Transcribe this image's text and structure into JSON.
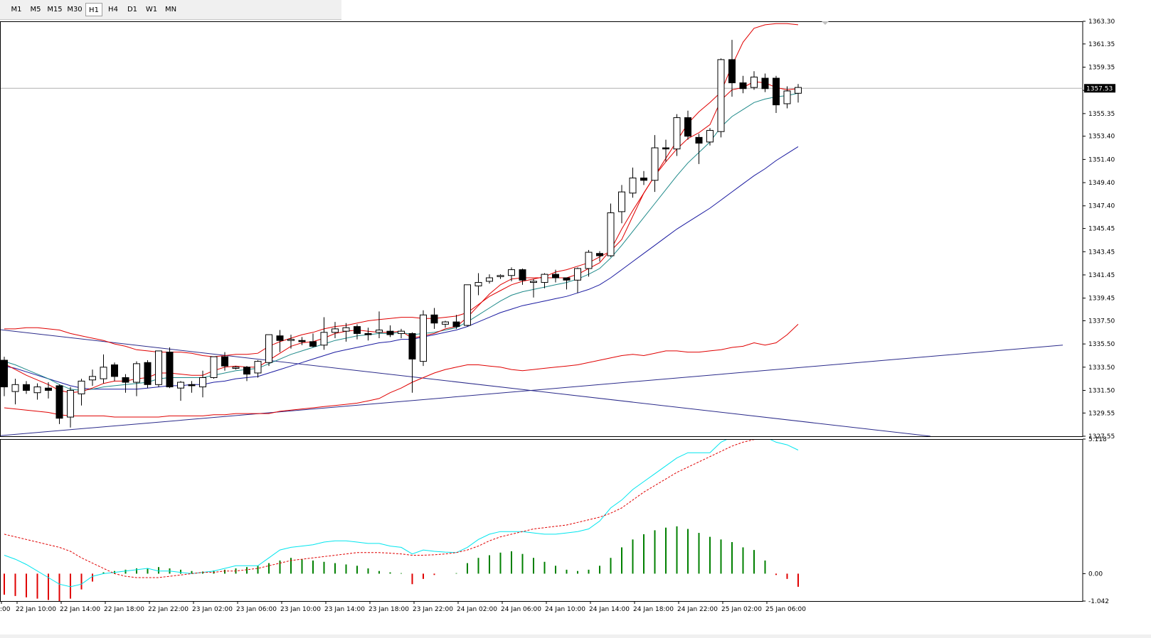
{
  "toolbar": {
    "timeframes": [
      "M1",
      "M5",
      "M15",
      "M30",
      "H1",
      "H4",
      "D1",
      "W1",
      "MN"
    ],
    "active": "H1"
  },
  "chart_data": {
    "type": "candlestick",
    "symbol_timeframe": "H1",
    "main_ylim": [
      1327.55,
      1363.3
    ],
    "price_ticks": [
      1363.3,
      1361.35,
      1359.35,
      1357.35,
      1355.35,
      1353.4,
      1351.4,
      1349.4,
      1347.4,
      1345.45,
      1343.45,
      1341.45,
      1339.45,
      1337.5,
      1335.5,
      1333.5,
      1331.5,
      1329.55,
      1327.55
    ],
    "current_price": "1357.53",
    "time_labels": [
      ":00",
      "22 Jan 10:00",
      "22 Jan 14:00",
      "22 Jan 18:00",
      "22 Jan 22:00",
      "23 Jan 02:00",
      "23 Jan 06:00",
      "23 Jan 10:00",
      "23 Jan 14:00",
      "23 Jan 18:00",
      "23 Jan 22:00",
      "24 Jan 02:00",
      "24 Jan 06:00",
      "24 Jan 10:00",
      "24 Jan 14:00",
      "24 Jan 18:00",
      "24 Jan 22:00",
      "25 Jan 02:00",
      "25 Jan 06:00"
    ],
    "candles_ohlc": [
      [
        1334.1,
        1334.4,
        1331.0,
        1331.8
      ],
      [
        1331.4,
        1332.5,
        1330.3,
        1332.0
      ],
      [
        1332.0,
        1332.3,
        1331.2,
        1331.5
      ],
      [
        1331.3,
        1332.1,
        1330.7,
        1331.8
      ],
      [
        1331.7,
        1332.2,
        1330.8,
        1331.5
      ],
      [
        1331.9,
        1332.0,
        1328.6,
        1329.1
      ],
      [
        1329.2,
        1331.8,
        1328.3,
        1331.5
      ],
      [
        1331.2,
        1332.5,
        1330.2,
        1332.3
      ],
      [
        1332.4,
        1333.3,
        1331.9,
        1332.7
      ],
      [
        1332.5,
        1334.6,
        1332.1,
        1333.5
      ],
      [
        1333.7,
        1333.9,
        1332.3,
        1332.7
      ],
      [
        1332.6,
        1332.9,
        1331.3,
        1332.2
      ],
      [
        1332.2,
        1334.0,
        1331.0,
        1333.8
      ],
      [
        1333.9,
        1334.1,
        1331.7,
        1332.0
      ],
      [
        1332.0,
        1334.8,
        1331.8,
        1334.9
      ],
      [
        1334.8,
        1335.2,
        1331.7,
        1331.8
      ],
      [
        1331.7,
        1332.3,
        1330.6,
        1332.2
      ],
      [
        1332.0,
        1332.3,
        1331.3,
        1331.9
      ],
      [
        1331.8,
        1333.2,
        1330.9,
        1332.6
      ],
      [
        1332.6,
        1334.4,
        1332.5,
        1334.4
      ],
      [
        1334.4,
        1334.8,
        1333.2,
        1333.6
      ],
      [
        1333.4,
        1333.6,
        1333.3,
        1333.5
      ],
      [
        1333.5,
        1333.6,
        1332.3,
        1332.9
      ],
      [
        1333.0,
        1334.1,
        1332.6,
        1334.0
      ],
      [
        1333.9,
        1336.2,
        1333.6,
        1336.3
      ],
      [
        1336.2,
        1336.7,
        1334.8,
        1335.8
      ],
      [
        1335.8,
        1336.3,
        1335.1,
        1335.9
      ],
      [
        1335.8,
        1336.1,
        1335.4,
        1335.7
      ],
      [
        1335.7,
        1336.4,
        1335.2,
        1335.3
      ],
      [
        1335.4,
        1337.8,
        1335.0,
        1336.5
      ],
      [
        1336.5,
        1337.4,
        1336.0,
        1336.8
      ],
      [
        1336.6,
        1337.3,
        1335.7,
        1336.9
      ],
      [
        1337.0,
        1337.2,
        1335.9,
        1336.4
      ],
      [
        1336.4,
        1336.9,
        1335.8,
        1336.3
      ],
      [
        1336.5,
        1338.3,
        1336.0,
        1336.7
      ],
      [
        1336.6,
        1337.1,
        1336.1,
        1336.3
      ],
      [
        1336.4,
        1336.8,
        1336.0,
        1336.6
      ],
      [
        1336.4,
        1336.5,
        1331.3,
        1334.2
      ],
      [
        1334.0,
        1338.4,
        1333.6,
        1338.0
      ],
      [
        1338.0,
        1338.6,
        1336.8,
        1337.3
      ],
      [
        1337.2,
        1337.5,
        1336.9,
        1337.4
      ],
      [
        1337.4,
        1338.0,
        1336.8,
        1337.0
      ],
      [
        1337.1,
        1340.6,
        1337.0,
        1340.6
      ],
      [
        1340.5,
        1341.6,
        1339.7,
        1340.8
      ],
      [
        1340.9,
        1341.5,
        1340.7,
        1341.2
      ],
      [
        1341.3,
        1341.5,
        1341.1,
        1341.4
      ],
      [
        1341.4,
        1342.1,
        1340.9,
        1341.9
      ],
      [
        1341.9,
        1342.0,
        1340.6,
        1341.0
      ],
      [
        1340.8,
        1341.1,
        1339.5,
        1340.9
      ],
      [
        1340.8,
        1341.6,
        1340.3,
        1341.5
      ],
      [
        1341.5,
        1341.9,
        1340.8,
        1341.2
      ],
      [
        1341.2,
        1341.2,
        1340.2,
        1341.0
      ],
      [
        1341.0,
        1342.1,
        1339.9,
        1342.0
      ],
      [
        1342.0,
        1343.6,
        1341.3,
        1343.4
      ],
      [
        1343.3,
        1343.5,
        1342.6,
        1343.1
      ],
      [
        1343.1,
        1347.6,
        1343.0,
        1346.8
      ],
      [
        1346.9,
        1349.2,
        1345.9,
        1348.6
      ],
      [
        1348.5,
        1350.7,
        1348.1,
        1349.8
      ],
      [
        1349.8,
        1350.4,
        1349.2,
        1349.6
      ],
      [
        1349.6,
        1353.5,
        1348.6,
        1352.4
      ],
      [
        1352.4,
        1353.1,
        1351.2,
        1352.3
      ],
      [
        1352.3,
        1355.3,
        1351.7,
        1355.0
      ],
      [
        1355.0,
        1355.6,
        1353.1,
        1353.4
      ],
      [
        1353.3,
        1353.6,
        1351.0,
        1352.8
      ],
      [
        1352.9,
        1354.1,
        1352.6,
        1353.9
      ],
      [
        1353.8,
        1360.1,
        1353.3,
        1360.0
      ],
      [
        1360.0,
        1361.7,
        1356.8,
        1358.0
      ],
      [
        1358.0,
        1358.6,
        1357.1,
        1357.5
      ],
      [
        1357.6,
        1359.0,
        1357.4,
        1358.5
      ],
      [
        1358.4,
        1358.8,
        1357.2,
        1357.5
      ],
      [
        1358.4,
        1358.6,
        1355.4,
        1356.1
      ],
      [
        1356.2,
        1357.7,
        1355.8,
        1357.3
      ],
      [
        1357.1,
        1357.9,
        1356.3,
        1357.6
      ]
    ],
    "bollinger_upper": [
      1336.8,
      1336.8,
      1336.9,
      1336.9,
      1336.8,
      1336.7,
      1336.4,
      1336.2,
      1336.0,
      1335.8,
      1335.5,
      1335.3,
      1335.0,
      1334.9,
      1334.8,
      1334.8,
      1334.8,
      1334.7,
      1334.5,
      1334.4,
      1334.5,
      1334.6,
      1334.6,
      1334.7,
      1335.3,
      1335.7,
      1336.0,
      1336.3,
      1336.5,
      1336.8,
      1337.0,
      1337.1,
      1337.3,
      1337.5,
      1337.6,
      1337.7,
      1337.8,
      1337.8,
      1337.7,
      1337.7,
      1337.8,
      1337.9,
      1338.2,
      1338.9,
      1339.6,
      1340.1,
      1340.6,
      1340.9,
      1341.1,
      1341.3,
      1341.7,
      1341.9,
      1342.2,
      1342.5,
      1343.0,
      1343.5,
      1344.5,
      1346.5,
      1348.5,
      1350.0,
      1351.5,
      1353.0,
      1354.5,
      1355.5,
      1356.3,
      1357.2,
      1359.5,
      1361.5,
      1362.7,
      1363.0,
      1363.1,
      1363.1,
      1363.0
    ],
    "bollinger_lower": [
      1330.0,
      1329.9,
      1329.8,
      1329.7,
      1329.6,
      1329.4,
      1329.3,
      1329.3,
      1329.3,
      1329.3,
      1329.2,
      1329.2,
      1329.2,
      1329.2,
      1329.2,
      1329.3,
      1329.3,
      1329.3,
      1329.3,
      1329.4,
      1329.4,
      1329.5,
      1329.5,
      1329.5,
      1329.5,
      1329.7,
      1329.8,
      1329.9,
      1330.0,
      1330.1,
      1330.2,
      1330.3,
      1330.4,
      1330.6,
      1330.8,
      1331.3,
      1331.7,
      1332.2,
      1332.6,
      1333.0,
      1333.3,
      1333.5,
      1333.7,
      1333.7,
      1333.6,
      1333.5,
      1333.3,
      1333.2,
      1333.3,
      1333.4,
      1333.5,
      1333.6,
      1333.7,
      1333.9,
      1334.1,
      1334.3,
      1334.5,
      1334.6,
      1334.5,
      1334.7,
      1334.9,
      1334.9,
      1334.8,
      1334.8,
      1334.9,
      1335.0,
      1335.2,
      1335.3,
      1335.6,
      1335.4,
      1335.6,
      1336.3,
      1337.2
    ],
    "ma_fast_red": [
      1333.8,
      1333.3,
      1332.8,
      1332.4,
      1332.0,
      1331.5,
      1331.3,
      1331.4,
      1331.7,
      1332.1,
      1332.3,
      1332.3,
      1332.5,
      1332.6,
      1333.0,
      1333.0,
      1332.9,
      1332.8,
      1332.8,
      1333.2,
      1333.5,
      1333.6,
      1333.5,
      1333.5,
      1334.1,
      1334.7,
      1335.3,
      1335.6,
      1335.7,
      1336.0,
      1336.4,
      1336.6,
      1336.7,
      1336.6,
      1336.5,
      1336.5,
      1336.6,
      1336.0,
      1336.2,
      1336.4,
      1336.8,
      1337.0,
      1337.8,
      1338.8,
      1339.8,
      1340.6,
      1341.1,
      1341.2,
      1341.2,
      1341.2,
      1341.2,
      1341.2,
      1341.5,
      1342.0,
      1342.5,
      1343.6,
      1345.4,
      1347.0,
      1348.5,
      1350.0,
      1351.2,
      1352.3,
      1353.2,
      1353.7,
      1354.4,
      1356.5,
      1357.4,
      1357.6,
      1358.1,
      1358.0,
      1357.6,
      1357.4,
      1357.5
    ],
    "ma_mid_teal": [
      1334.0,
      1333.7,
      1333.3,
      1332.9,
      1332.5,
      1332.0,
      1331.6,
      1331.5,
      1331.6,
      1331.8,
      1331.9,
      1332.0,
      1332.1,
      1332.2,
      1332.5,
      1332.6,
      1332.6,
      1332.6,
      1332.6,
      1332.8,
      1333.0,
      1333.2,
      1333.3,
      1333.4,
      1333.8,
      1334.2,
      1334.6,
      1334.9,
      1335.2,
      1335.5,
      1335.8,
      1336.0,
      1336.2,
      1336.3,
      1336.4,
      1336.4,
      1336.5,
      1336.3,
      1336.4,
      1336.5,
      1336.7,
      1336.9,
      1337.4,
      1338.0,
      1338.6,
      1339.2,
      1339.7,
      1340.0,
      1340.2,
      1340.4,
      1340.6,
      1340.8,
      1341.1,
      1341.5,
      1342.0,
      1342.9,
      1344.0,
      1345.2,
      1346.4,
      1347.6,
      1348.8,
      1350.0,
      1351.1,
      1352.0,
      1352.9,
      1354.2,
      1355.1,
      1355.7,
      1356.3,
      1356.6,
      1356.8,
      1356.9,
      1357.1
    ],
    "ma_slow_blue": [
      1333.6,
      1333.4,
      1333.1,
      1332.8,
      1332.5,
      1332.2,
      1331.9,
      1331.7,
      1331.6,
      1331.6,
      1331.6,
      1331.6,
      1331.6,
      1331.7,
      1331.8,
      1331.9,
      1331.9,
      1332.0,
      1332.0,
      1332.2,
      1332.3,
      1332.5,
      1332.6,
      1332.7,
      1333.0,
      1333.3,
      1333.6,
      1333.9,
      1334.2,
      1334.5,
      1334.8,
      1335.0,
      1335.2,
      1335.4,
      1335.6,
      1335.7,
      1335.9,
      1335.9,
      1336.1,
      1336.3,
      1336.5,
      1336.7,
      1337.0,
      1337.4,
      1337.8,
      1338.2,
      1338.5,
      1338.8,
      1339.0,
      1339.2,
      1339.4,
      1339.6,
      1339.9,
      1340.2,
      1340.6,
      1341.2,
      1341.9,
      1342.6,
      1343.3,
      1344.0,
      1344.7,
      1345.4,
      1346.0,
      1346.6,
      1347.2,
      1347.9,
      1348.6,
      1349.3,
      1350.0,
      1350.6,
      1351.3,
      1351.9,
      1352.5
    ],
    "trendlines": [
      {
        "x": [
          -1,
          84
        ],
        "y": [
          1336.8,
          1327.55
        ]
      },
      {
        "x": [
          -1,
          96
        ],
        "y": [
          1327.55,
          1335.4
        ]
      }
    ],
    "osc_ylim": [
      -1.042,
      5.118
    ],
    "osc_ticks": [
      "5.118",
      "0.00",
      "-1.042"
    ],
    "histogram": [
      -0.8,
      -0.85,
      -0.9,
      -0.95,
      -1.0,
      -1.05,
      -0.95,
      -0.6,
      -0.3,
      0.05,
      0.1,
      0.15,
      0.2,
      0.2,
      0.25,
      0.2,
      0.15,
      0.1,
      0.08,
      0.12,
      0.15,
      0.2,
      0.25,
      0.3,
      0.4,
      0.5,
      0.6,
      0.55,
      0.5,
      0.45,
      0.4,
      0.35,
      0.3,
      0.2,
      0.1,
      0.05,
      0.02,
      -0.4,
      -0.2,
      -0.05,
      0.0,
      0.02,
      0.4,
      0.6,
      0.7,
      0.8,
      0.85,
      0.75,
      0.6,
      0.45,
      0.3,
      0.15,
      0.1,
      0.15,
      0.3,
      0.6,
      1.0,
      1.3,
      1.5,
      1.65,
      1.75,
      1.8,
      1.7,
      1.55,
      1.4,
      1.3,
      1.2,
      1.0,
      0.9,
      0.5,
      -0.05,
      -0.2,
      -0.5
    ],
    "signal_red": [
      1.5,
      1.4,
      1.3,
      1.2,
      1.1,
      1.0,
      0.85,
      0.6,
      0.4,
      0.2,
      0.0,
      -0.1,
      -0.15,
      -0.15,
      -0.15,
      -0.1,
      -0.05,
      0.0,
      0.05,
      0.05,
      0.1,
      0.1,
      0.15,
      0.2,
      0.3,
      0.4,
      0.5,
      0.55,
      0.6,
      0.65,
      0.7,
      0.75,
      0.8,
      0.8,
      0.8,
      0.78,
      0.75,
      0.7,
      0.7,
      0.72,
      0.75,
      0.8,
      0.9,
      1.05,
      1.25,
      1.4,
      1.5,
      1.6,
      1.7,
      1.75,
      1.8,
      1.85,
      1.95,
      2.05,
      2.15,
      2.3,
      2.5,
      2.8,
      3.1,
      3.35,
      3.6,
      3.85,
      4.05,
      4.25,
      4.45,
      4.65,
      4.85,
      5.0,
      5.1,
      5.12,
      5.13,
      5.14,
      5.15
    ],
    "main_cyan": [
      0.7,
      0.55,
      0.35,
      0.1,
      -0.15,
      -0.4,
      -0.5,
      -0.4,
      -0.1,
      0.0,
      0.05,
      0.1,
      0.15,
      0.2,
      0.1,
      0.1,
      0.05,
      0.0,
      0.05,
      0.1,
      0.2,
      0.3,
      0.3,
      0.3,
      0.6,
      0.9,
      1.0,
      1.05,
      1.1,
      1.2,
      1.25,
      1.25,
      1.2,
      1.15,
      1.15,
      1.05,
      1.0,
      0.75,
      0.9,
      0.85,
      0.82,
      0.8,
      1.0,
      1.3,
      1.5,
      1.6,
      1.6,
      1.6,
      1.55,
      1.5,
      1.5,
      1.55,
      1.6,
      1.7,
      2.0,
      2.5,
      2.8,
      3.2,
      3.5,
      3.8,
      4.1,
      4.4,
      4.6,
      4.6,
      4.6,
      5.0,
      5.2,
      5.25,
      5.3,
      5.2,
      5.0,
      4.9,
      4.7
    ]
  }
}
